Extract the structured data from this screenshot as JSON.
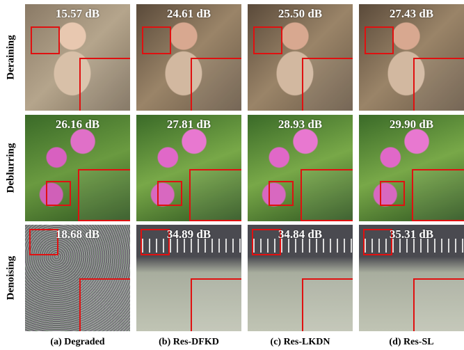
{
  "rows": [
    {
      "label": "Deraining",
      "scores": [
        "15.57 dB",
        "24.61 dB",
        "25.50 dB",
        "27.43 dB"
      ]
    },
    {
      "label": "Deblurring",
      "scores": [
        "26.16 dB",
        "27.81 dB",
        "28.93 dB",
        "29.90 dB"
      ]
    },
    {
      "label": "Denoising",
      "scores": [
        "18.68 dB",
        "34.89 dB",
        "34.84 dB",
        "35.31 dB"
      ]
    }
  ],
  "columns": [
    "(a) Degraded",
    "(b) Res-DFKD",
    "(c) Res-LKDN",
    "(d) Res-SL"
  ]
}
